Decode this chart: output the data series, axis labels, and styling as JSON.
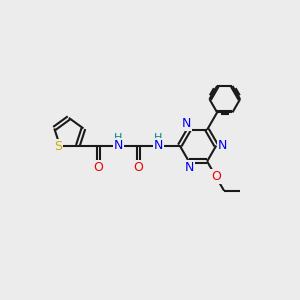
{
  "bg_color": "#ececec",
  "bond_color": "#1a1a1a",
  "line_width": 1.5,
  "S_color": "#ccaa00",
  "N_color": "#0000ee",
  "O_color": "#ee0000",
  "H_color": "#008888",
  "fig_w": 3.0,
  "fig_h": 3.0,
  "dpi": 100,
  "xlim": [
    0,
    10
  ],
  "ylim": [
    0,
    10
  ]
}
